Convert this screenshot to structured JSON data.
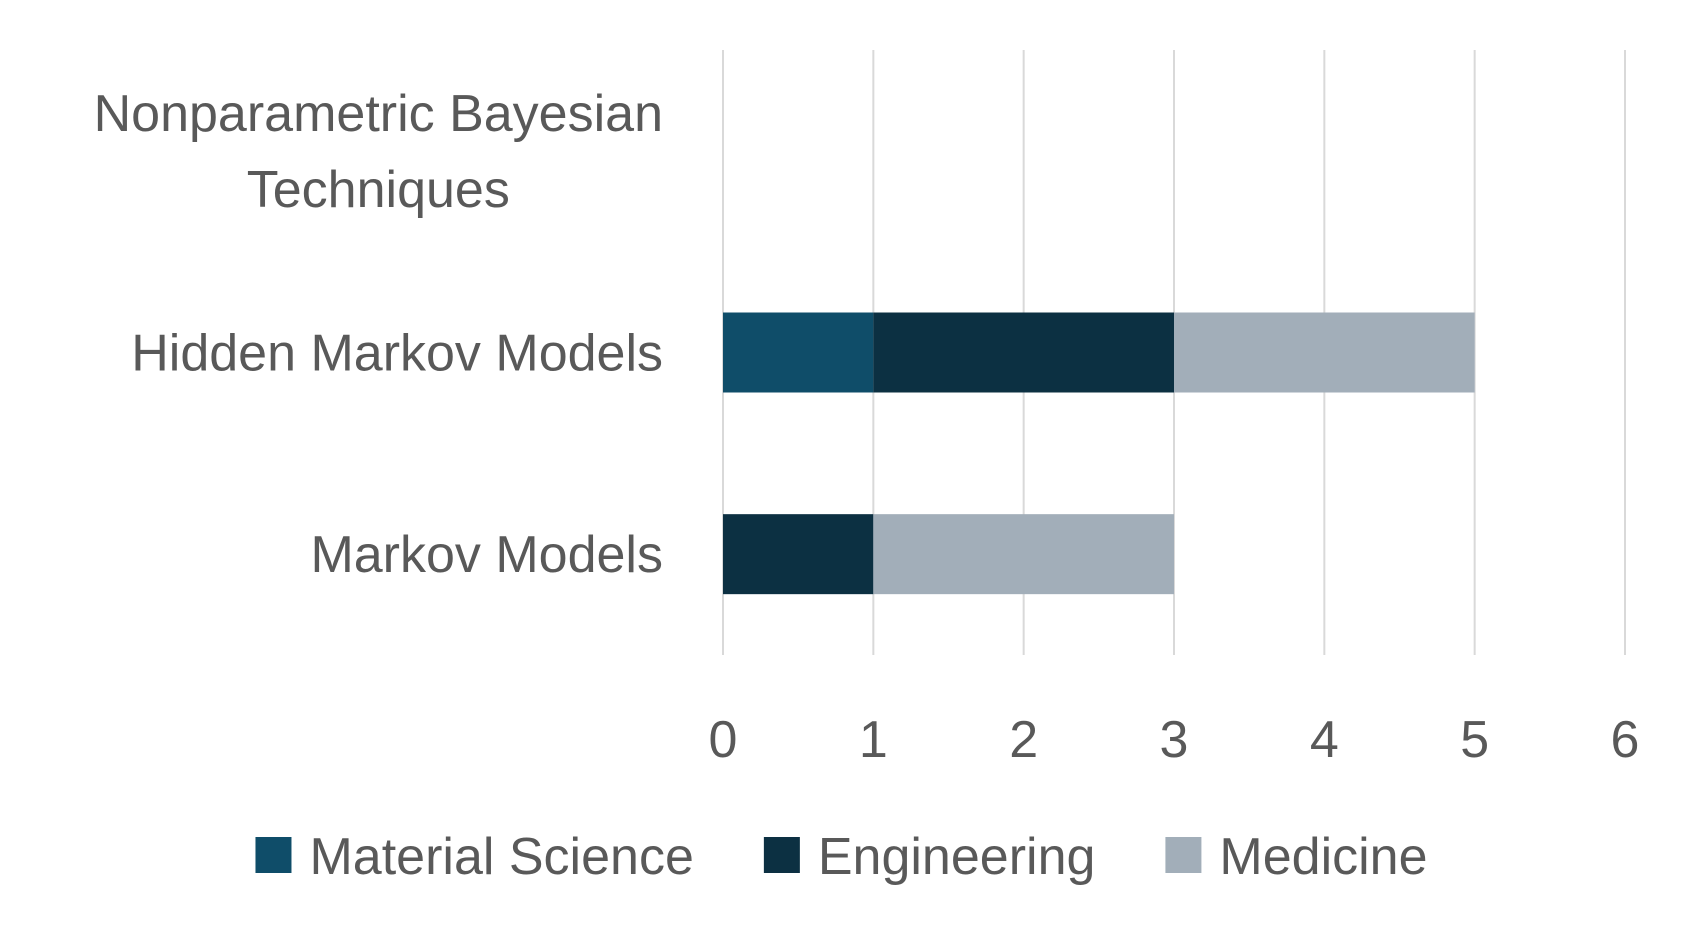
{
  "chart_data": {
    "type": "bar",
    "orientation": "horizontal",
    "stacked": true,
    "title": "",
    "xlabel": "",
    "ylabel": "",
    "categories": [
      "Markov Models",
      "Hidden Markov Models",
      "Nonparametric Bayesian Techniques"
    ],
    "series": [
      {
        "name": "Material Science",
        "color": "#0f4d69",
        "values": [
          0,
          1,
          0
        ]
      },
      {
        "name": "Engineering",
        "color": "#0c3042",
        "values": [
          1,
          2,
          0
        ]
      },
      {
        "name": "Medicine",
        "color": "#a2aeb9",
        "values": [
          2,
          2,
          0
        ]
      }
    ],
    "xlim": [
      0,
      6
    ],
    "ticks": [
      "0",
      "1",
      "2",
      "3",
      "4",
      "5",
      "6"
    ],
    "grid": true,
    "legend": "bottom"
  }
}
